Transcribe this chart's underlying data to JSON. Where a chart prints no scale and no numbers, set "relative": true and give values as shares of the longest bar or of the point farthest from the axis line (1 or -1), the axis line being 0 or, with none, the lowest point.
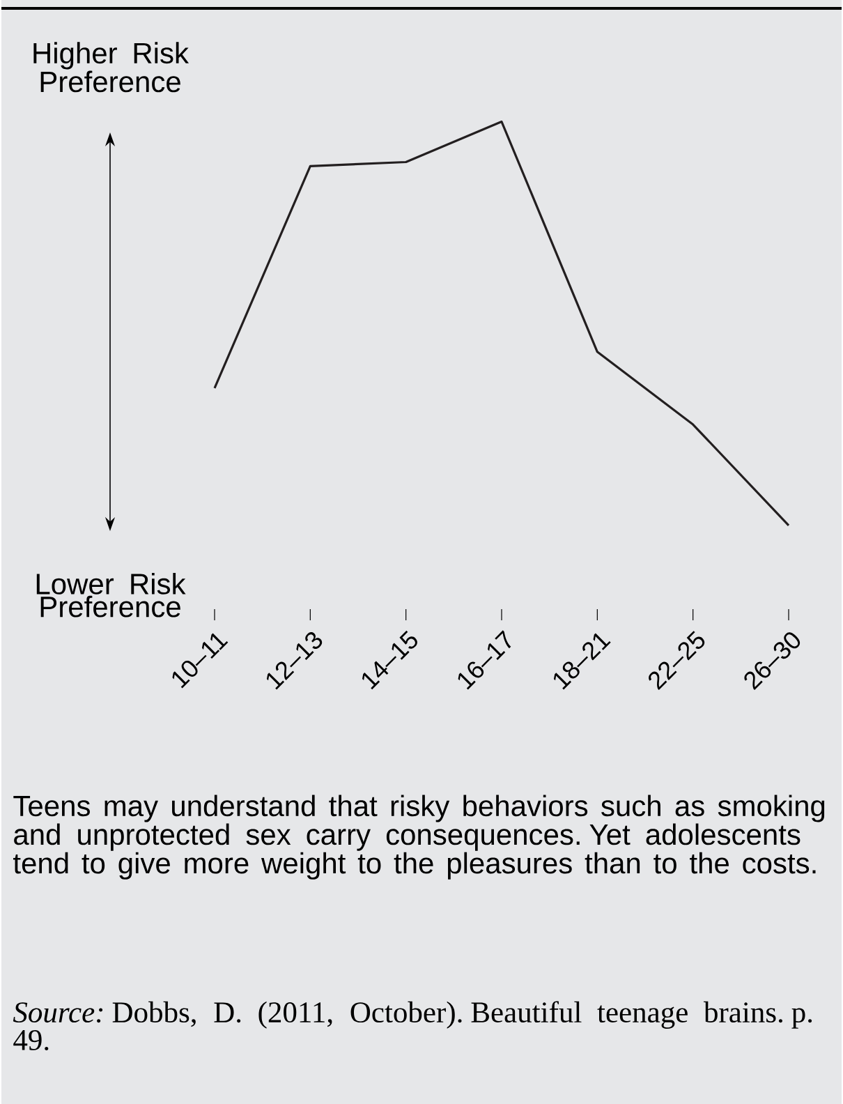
{
  "chart_data": {
    "type": "line",
    "relative": true,
    "color": "#231f20",
    "categories": [
      "10–11",
      "12–13",
      "14–15",
      "16–17",
      "18–21",
      "22–25",
      "26–30"
    ],
    "values": [
      0.34,
      0.89,
      0.9,
      1,
      0.43,
      0.25,
      0
    ],
    "annotations": [
      "Higher Risk Preference",
      "Lower Risk Preference",
      "Teens may understand that risky behaviors such as smoking and unprotected sex carry consequences. Yet adolescents tend to give more weight to the pleasures than to the costs.",
      "*Source:* Dobbs, D. (2011, October). Beautiful teenage brains. p. 49."
    ]
  }
}
